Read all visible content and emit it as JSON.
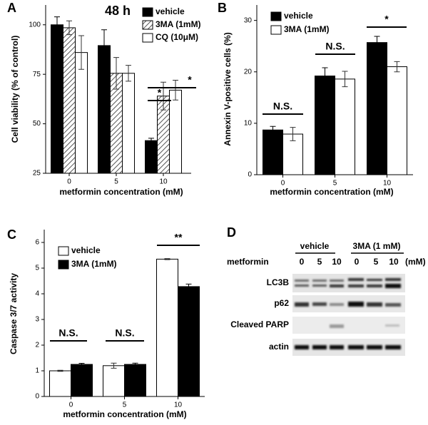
{
  "chart_data": [
    {
      "type": "bar",
      "panel_label": "A",
      "title": "48 h",
      "y_label": "Cell viability (% of control)",
      "x_label": "metformin concentration (mM)",
      "categories": [
        "0",
        "5",
        "10"
      ],
      "ylim": [
        25,
        110
      ],
      "yticks": [
        25,
        50,
        75,
        100
      ],
      "series": [
        {
          "name": "vehicle",
          "color": "#000000",
          "values": [
            100,
            89.5,
            41.5
          ],
          "errors": [
            4,
            8,
            1.2
          ]
        },
        {
          "name": "3MA (1mM)",
          "color": "#ffffff",
          "hatch": true,
          "values": [
            98.5,
            75.5,
            64
          ],
          "errors": [
            3.5,
            8,
            7
          ]
        },
        {
          "name": "CQ (10μM)",
          "color": "#ffffff",
          "values": [
            86,
            75.5,
            67
          ],
          "errors": [
            8.5,
            4,
            5
          ]
        }
      ],
      "annotations": [
        {
          "text": "*"
        },
        {
          "text": "*"
        }
      ]
    },
    {
      "type": "bar",
      "panel_label": "B",
      "y_label": "Annexin V-positive cells (%)",
      "x_label": "metformin concentration (mM)",
      "categories": [
        "0",
        "5",
        "10"
      ],
      "ylim": [
        0,
        33
      ],
      "yticks": [
        0,
        10,
        20,
        30
      ],
      "series": [
        {
          "name": "vehicle",
          "color": "#000000",
          "values": [
            8.7,
            19.2,
            25.7
          ],
          "errors": [
            0.7,
            1.6,
            1.2
          ]
        },
        {
          "name": "3MA (1mM)",
          "color": "#ffffff",
          "values": [
            7.9,
            18.6,
            21
          ],
          "errors": [
            1.3,
            1.5,
            1
          ]
        }
      ],
      "annotations": [
        {
          "text": "N.S."
        },
        {
          "text": "N.S."
        },
        {
          "text": "*"
        }
      ]
    },
    {
      "type": "bar",
      "panel_label": "C",
      "y_label": "Caspase 3/7 activity",
      "x_label": "metformin concentration (mM)",
      "categories": [
        "0",
        "5",
        "10"
      ],
      "ylim": [
        0,
        6.5
      ],
      "yticks": [
        0,
        1,
        2,
        3,
        4,
        5,
        6
      ],
      "series": [
        {
          "name": "vehicle",
          "color": "#ffffff",
          "values": [
            1,
            1.2,
            5.35
          ],
          "errors": [
            0.02,
            0.1,
            0.02
          ]
        },
        {
          "name": "3MA (1mM)",
          "color": "#000000",
          "values": [
            1.25,
            1.25,
            4.28
          ],
          "errors": [
            0.04,
            0.05,
            0.1
          ]
        }
      ],
      "annotations": [
        {
          "text": "N.S."
        },
        {
          "text": "N.S."
        },
        {
          "text": "**"
        }
      ]
    }
  ],
  "blot": {
    "panel_label": "D",
    "groups": [
      "vehicle",
      "3MA (1 mM)"
    ],
    "row_label": "metformin",
    "lanes": [
      "0",
      "5",
      "10",
      "0",
      "5",
      "10"
    ],
    "unit": "(mM)",
    "rows": [
      "LC3B",
      "p62",
      "Cleaved PARP",
      "actin"
    ]
  }
}
